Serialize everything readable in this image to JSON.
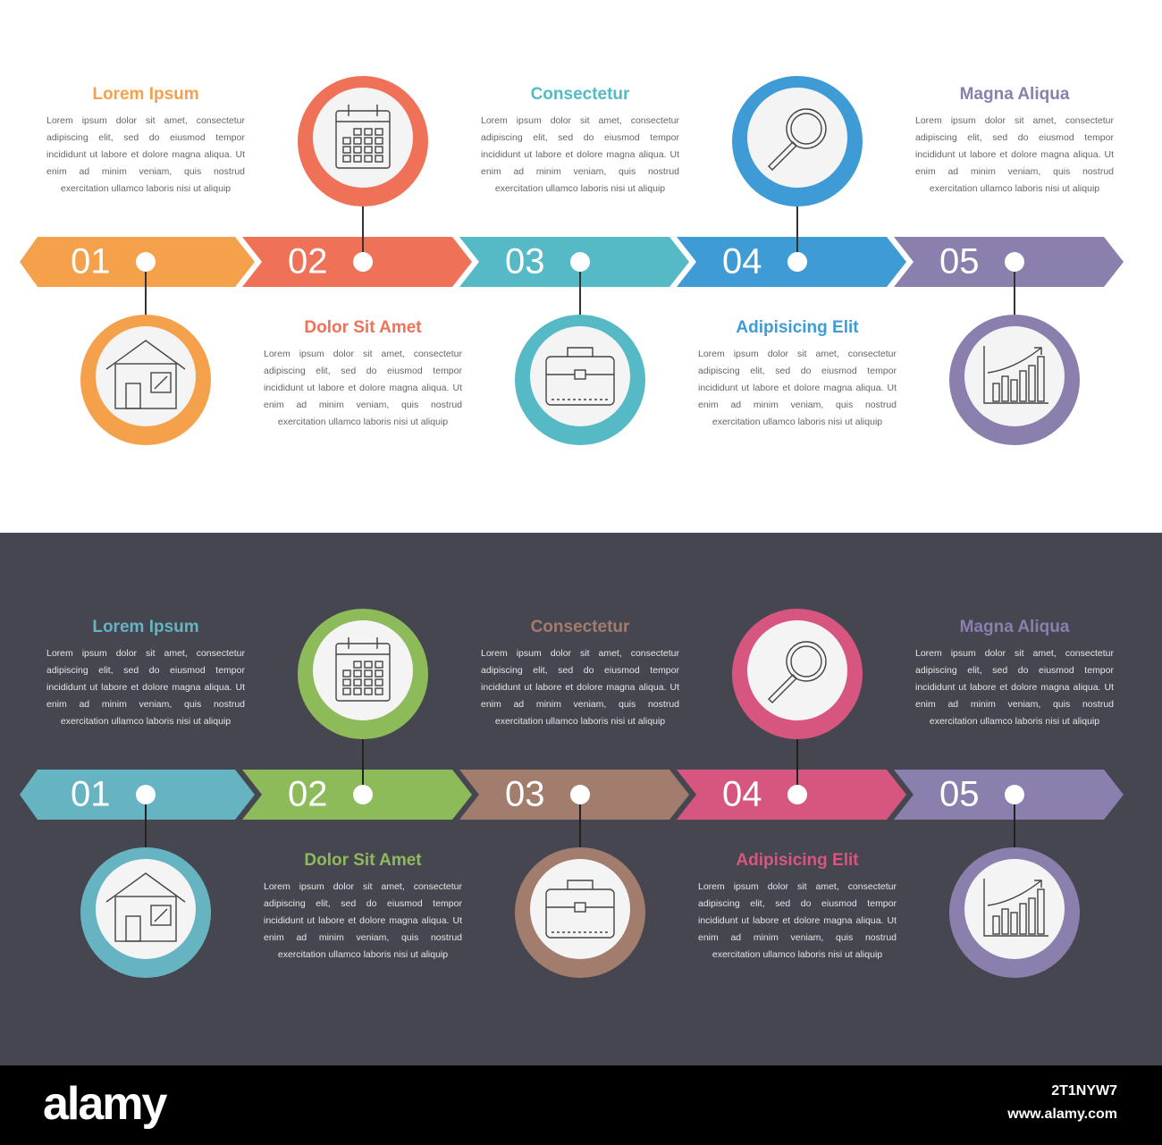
{
  "panels": [
    {
      "steps": [
        {
          "number": "01",
          "title": "Lorem Ipsum",
          "text": "Lorem ipsum dolor sit amet, consectetur adipiscing elit, sed do eiusmod tempor incididunt ut labore et dolore magna aliqua. Ut enim ad minim veniam, quis nostrud exercitation ullamco laboris nisi ut aliquip"
        },
        {
          "number": "02",
          "title": "Dolor Sit Amet",
          "text": "Lorem ipsum dolor sit amet, consectetur adipiscing elit, sed do eiusmod tempor incididunt ut labore et dolore magna aliqua. Ut enim ad minim veniam, quis nostrud exercitation ullamco laboris nisi ut aliquip"
        },
        {
          "number": "03",
          "title": "Consectetur",
          "text": "Lorem ipsum dolor sit amet, consectetur adipiscing elit, sed do eiusmod tempor incididunt ut labore et dolore magna aliqua. Ut enim ad minim veniam, quis nostrud exercitation ullamco laboris nisi ut aliquip"
        },
        {
          "number": "04",
          "title": "Adipisicing Elit",
          "text": "Lorem ipsum dolor sit amet, consectetur adipiscing elit, sed do eiusmod tempor incididunt ut labore et dolore magna aliqua. Ut enim ad minim veniam, quis nostrud exercitation ullamco laboris nisi ut aliquip"
        },
        {
          "number": "05",
          "title": "Magna Aliqua",
          "text": "Lorem ipsum dolor sit amet, consectetur adipiscing elit, sed do eiusmod tempor incididunt ut labore et dolore magna aliqua. Ut enim ad minim veniam, quis nostrud exercitation ullamco laboris nisi ut aliquip"
        }
      ]
    },
    {
      "steps": [
        {
          "number": "01",
          "title": "Lorem Ipsum",
          "text": "Lorem ipsum dolor sit amet, consectetur adipiscing elit, sed do eiusmod tempor incididunt ut labore et dolore magna aliqua. Ut enim ad minim veniam, quis nostrud exercitation ullamco laboris nisi ut aliquip"
        },
        {
          "number": "02",
          "title": "Dolor Sit Amet",
          "text": "Lorem ipsum dolor sit amet, consectetur adipiscing elit, sed do eiusmod tempor incididunt ut labore et dolore magna aliqua. Ut enim ad minim veniam, quis nostrud exercitation ullamco laboris nisi ut aliquip"
        },
        {
          "number": "03",
          "title": "Consectetur",
          "text": "Lorem ipsum dolor sit amet, consectetur adipiscing elit, sed do eiusmod tempor incididunt ut labore et dolore magna aliqua. Ut enim ad minim veniam, quis nostrud exercitation ullamco laboris nisi ut aliquip"
        },
        {
          "number": "04",
          "title": "Adipisicing Elit",
          "text": "Lorem ipsum dolor sit amet, consectetur adipiscing elit, sed do eiusmod tempor incididunt ut labore et dolore magna aliqua. Ut enim ad minim veniam, quis nostrud exercitation ullamco laboris nisi ut aliquip"
        },
        {
          "number": "05",
          "title": "Magna Aliqua",
          "text": "Lorem ipsum dolor sit amet, consectetur adipiscing elit, sed do eiusmod tempor incididunt ut labore et dolore magna aliqua. Ut enim ad minim veniam, quis nostrud exercitation ullamco laboris nisi ut aliquip"
        }
      ]
    }
  ],
  "footer": {
    "logo": "alamy",
    "id": "2T1NYW7",
    "url": "www.alamy.com"
  }
}
